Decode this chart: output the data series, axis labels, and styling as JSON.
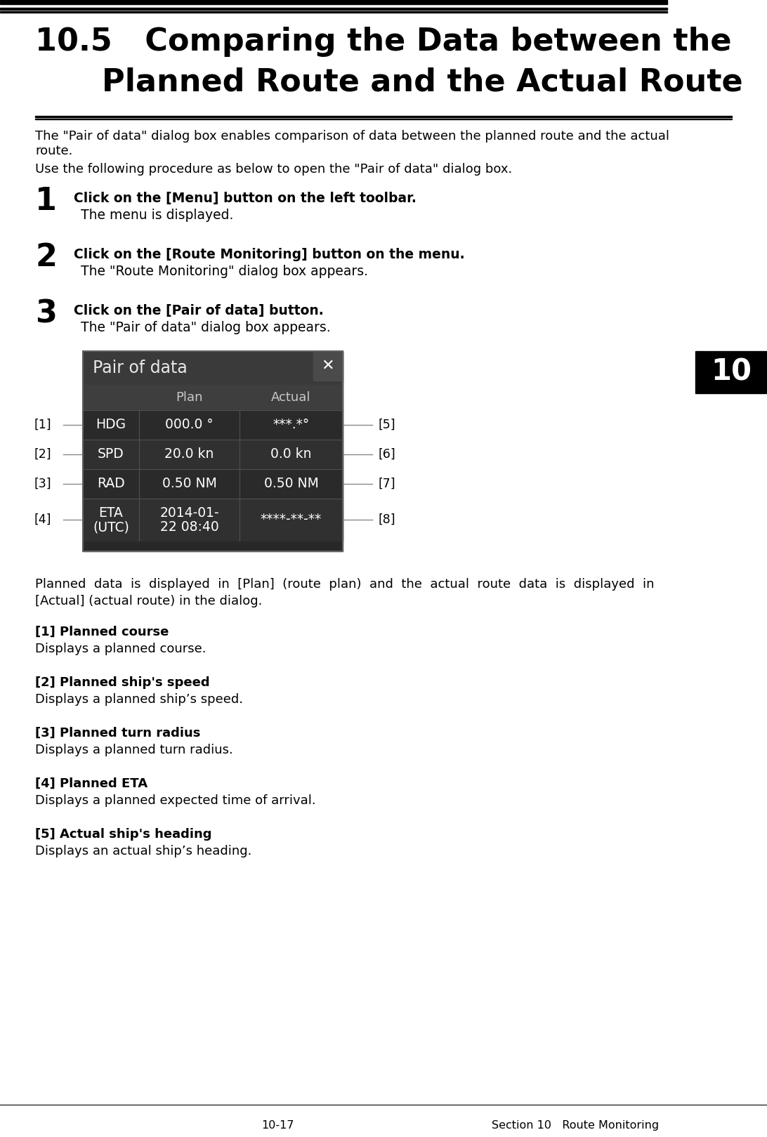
{
  "top_bar_color": "#000000",
  "section_number": "10",
  "section_bg": "#000000",
  "section_text_color": "#ffffff",
  "dialog": {
    "title": "Pair of data",
    "rows": [
      [
        "HDG",
        "000.0 °",
        "***.*°"
      ],
      [
        "SPD",
        "20.0 kn",
        "0.0 kn"
      ],
      [
        "RAD",
        "0.50 NM",
        "0.50 NM"
      ],
      [
        "ETA\n(UTC)",
        "2014-01-\n22 08:40",
        "****-**-**"
      ]
    ]
  },
  "footer_left": "10-17",
  "footer_right": "Section 10   Route Monitoring",
  "bg_color": "#ffffff",
  "text_color_main": "#000000"
}
